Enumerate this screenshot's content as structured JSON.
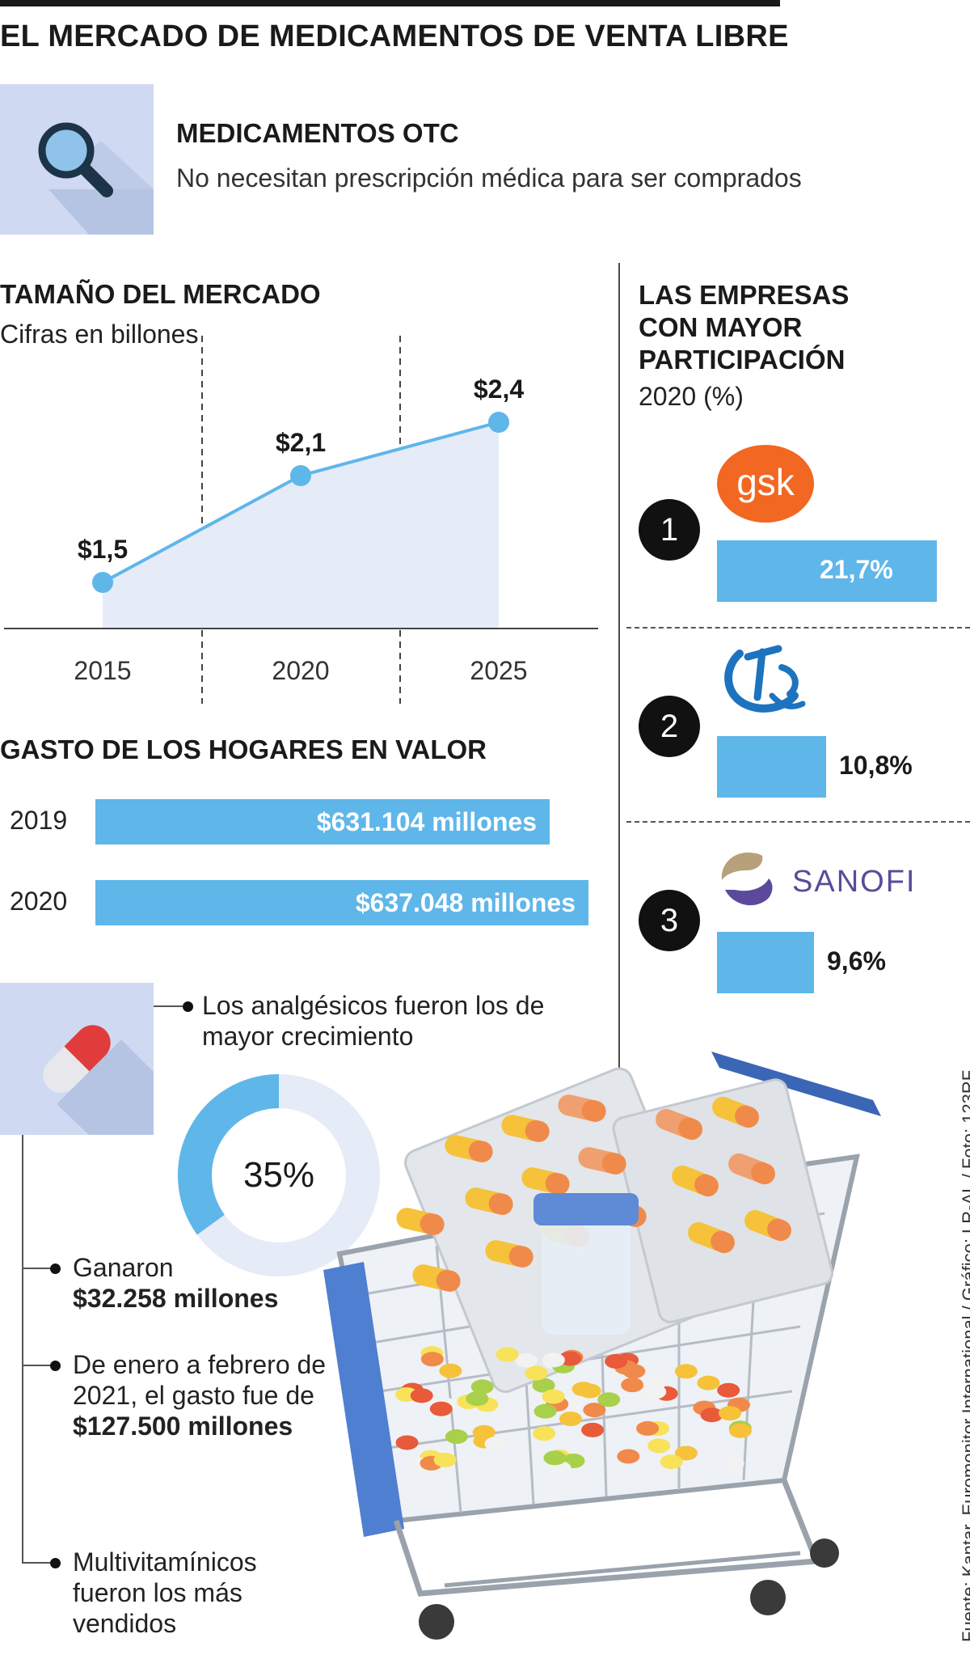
{
  "title": "EL MERCADO DE MEDICAMENTOS DE VENTA LIBRE",
  "otc": {
    "icon": "magnifier-icon",
    "title": "MEDICAMENTOS OTC",
    "description": "No necesitan prescripción médica para ser comprados"
  },
  "market": {
    "title": "TAMAÑO DEL MERCADO",
    "subtitle": "Cifras en billones"
  },
  "household": {
    "title": "GASTO DE LOS HOGARES EN VALOR"
  },
  "companies": {
    "title": "LAS EMPRESAS CON MAYOR PARTICIPACIÓN",
    "subtitle": "2020 (%)",
    "items": [
      {
        "rank": "1",
        "logo_text": "gsk",
        "logo_icon": "gsk-logo",
        "label": "21,7%"
      },
      {
        "rank": "2",
        "logo_text": "",
        "logo_icon": "tq-logo",
        "label": "10,8%"
      },
      {
        "rank": "3",
        "logo_text": "SANOFI",
        "logo_icon": "sanofi-logo",
        "label": "9,6%"
      }
    ]
  },
  "analgesics": {
    "icon": "pill-icon",
    "headline": "Los analgésicos fueron los de mayor crecimiento",
    "donut_label": "35%",
    "donut_value": 35,
    "bullets": [
      {
        "text": "Ganaron",
        "bold": "$32.258 millones"
      },
      {
        "text": "De enero a febrero de 2021, el gasto fue de",
        "bold": "$127.500 millones"
      },
      {
        "text": "Multivitamínicos fueron los más vendidos",
        "bold": ""
      }
    ]
  },
  "credits": "Fuente: Kantar, Euromonitor International / Gráfico: LR-AL / Foto: 123RF",
  "colors": {
    "accent": "#5fb6e9",
    "panel": "#cfdaf2",
    "area_fill": "#e6ebf8",
    "gsk_orange": "#f26722",
    "sanofi_purple": "#5b4a9b",
    "tq_blue": "#1e73be"
  },
  "chart_data": [
    {
      "type": "line",
      "title": "TAMAÑO DEL MERCADO",
      "subtitle": "Cifras en billones",
      "x": [
        "2015",
        "2020",
        "2025"
      ],
      "values": [
        1.5,
        2.1,
        2.4
      ],
      "data_labels": [
        "$1,5",
        "$2,1",
        "$2,4"
      ],
      "ylim": [
        1.25,
        2.75
      ],
      "area_fill": true,
      "grid": false
    },
    {
      "type": "bar",
      "orientation": "horizontal",
      "title": "GASTO DE LOS HOGARES EN VALOR",
      "categories": [
        "2019",
        "2020"
      ],
      "values": [
        631104,
        637048
      ],
      "data_labels": [
        "$631.104 millones",
        "$637.048 millones"
      ]
    },
    {
      "type": "bar",
      "orientation": "horizontal",
      "title": "LAS EMPRESAS CON MAYOR PARTICIPACIÓN",
      "subtitle": "2020 (%)",
      "categories": [
        "1",
        "2",
        "3"
      ],
      "values": [
        21.7,
        10.8,
        9.6
      ],
      "data_labels": [
        "21,7%",
        "10,8%",
        "9,6%"
      ]
    },
    {
      "type": "pie",
      "variant": "donut",
      "values": [
        35,
        65
      ],
      "center_label": "35%"
    }
  ]
}
